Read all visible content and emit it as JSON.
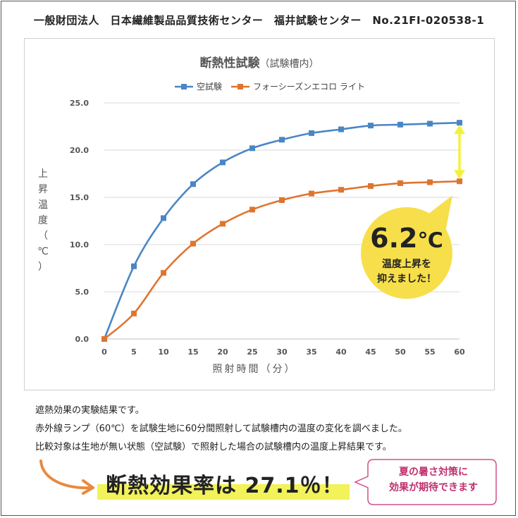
{
  "header": {
    "text": "一般財団法人　日本繊維製品品質技術センター　福井試験センター　No.21FI-020538-1"
  },
  "chart_data": {
    "type": "line",
    "title": "断熱性試験",
    "subtitle": "（試験槽内）",
    "xlabel": "照射時間（分）",
    "ylabel": "上昇温度（℃）",
    "ylim": [
      0,
      25
    ],
    "yticks": [
      "0.0",
      "5.0",
      "10.0",
      "15.0",
      "20.0",
      "25.0"
    ],
    "x": [
      0,
      5,
      10,
      15,
      20,
      25,
      30,
      35,
      40,
      45,
      50,
      55,
      60
    ],
    "grid": "horizontal",
    "legend": "top",
    "series": [
      {
        "name": "空試験",
        "color": "#4a86c5",
        "values": [
          0.0,
          7.7,
          12.8,
          16.4,
          18.7,
          20.2,
          21.1,
          21.8,
          22.2,
          22.6,
          22.7,
          22.8,
          22.9
        ]
      },
      {
        "name": "フォーシーズンエコロ ライト",
        "color": "#e0742f",
        "values": [
          0.0,
          2.7,
          7.0,
          10.1,
          12.2,
          13.7,
          14.7,
          15.4,
          15.8,
          16.2,
          16.5,
          16.6,
          16.7
        ]
      }
    ],
    "annotation": {
      "value": "6.2",
      "unit": "℃",
      "line1": "温度上昇を",
      "line2": "抑えました！",
      "bubble_color": "#f7df4b",
      "arrow_color": "#f2f23a"
    }
  },
  "description": {
    "line1": "遮熱効果の実験結果です。",
    "line2": "赤外線ランプ（60℃）を試験生地に60分間照射して試験槽内の温度の変化を調べました。",
    "line3": "比較対象は生地が無い状態（空試験）で照射した場合の試験槽内の温度上昇結果です。"
  },
  "conclusion": {
    "text": "断熱効果率は 27.1％！",
    "highlight_color": "#f2f25a",
    "arrow_color": "#e98a3e"
  },
  "callout": {
    "line1": "夏の暑さ対策に",
    "line2": "効果が期待できます",
    "color": "#c0306e"
  }
}
